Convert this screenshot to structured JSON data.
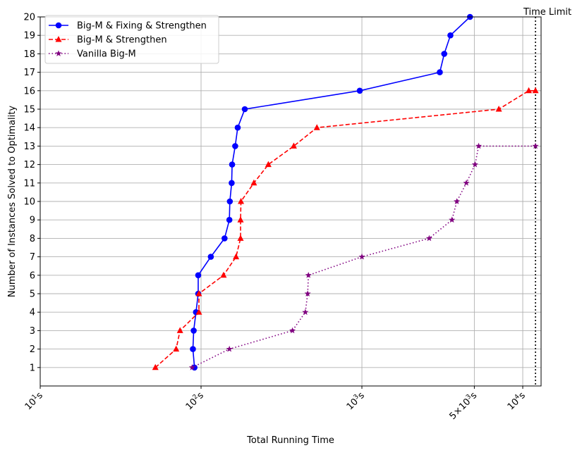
{
  "chart_data": {
    "type": "line",
    "xlabel": "Total Running Time",
    "ylabel": "Number of Instances Solved to Optimality",
    "x_scale": "log",
    "xlim": [
      10,
      13000
    ],
    "ylim": [
      0,
      20
    ],
    "grid": true,
    "legend_position": "top-left",
    "yticks": [
      1,
      2,
      3,
      4,
      5,
      6,
      7,
      8,
      9,
      10,
      11,
      12,
      13,
      14,
      15,
      16,
      17,
      18,
      19,
      20
    ],
    "xticks": [
      {
        "value": 10,
        "base": "10",
        "exp": "1",
        "unit": "s"
      },
      {
        "value": 100,
        "base": "10",
        "exp": "2",
        "unit": "s"
      },
      {
        "value": 1000,
        "base": "10",
        "exp": "3",
        "unit": "s"
      },
      {
        "value": 5000,
        "base": "5×10",
        "exp": "3",
        "unit": "s"
      },
      {
        "value": 10000,
        "base": "10",
        "exp": "4",
        "unit": "s"
      }
    ],
    "annotation": {
      "text": "Time Limit",
      "x": 12000
    },
    "series": [
      {
        "name": "Big-M & Fixing & Strengthen",
        "color": "#0000ff",
        "marker": "circle",
        "linestyle": "solid",
        "x": [
          91,
          89,
          90,
          93,
          96,
          96,
          115,
          140,
          150,
          151,
          155,
          156,
          163,
          169,
          187,
          970,
          3050,
          3250,
          3550,
          4700
        ],
        "y": [
          1,
          2,
          3,
          4,
          5,
          6,
          7,
          8,
          9,
          10,
          11,
          12,
          13,
          14,
          15,
          16,
          17,
          18,
          19,
          20
        ]
      },
      {
        "name": "Big-M & Strengthen",
        "color": "#ff0000",
        "marker": "triangle",
        "linestyle": "dashed",
        "x": [
          52,
          70,
          74,
          97,
          97,
          138,
          165,
          176,
          176,
          177,
          213,
          262,
          377,
          525,
          7100,
          10900,
          12000
        ],
        "y": [
          1,
          2,
          3,
          4,
          5,
          6,
          7,
          8,
          9,
          10,
          11,
          12,
          13,
          14,
          15,
          16,
          16
        ]
      },
      {
        "name": "Vanilla Big-M",
        "color": "#800080",
        "marker": "star",
        "linestyle": "dotted",
        "x": [
          88,
          150,
          370,
          445,
          460,
          465,
          1000,
          2620,
          3630,
          3890,
          4460,
          5050,
          5320,
          12000
        ],
        "y": [
          1,
          2,
          3,
          4,
          5,
          6,
          7,
          8,
          9,
          10,
          11,
          12,
          13,
          13
        ]
      }
    ]
  }
}
